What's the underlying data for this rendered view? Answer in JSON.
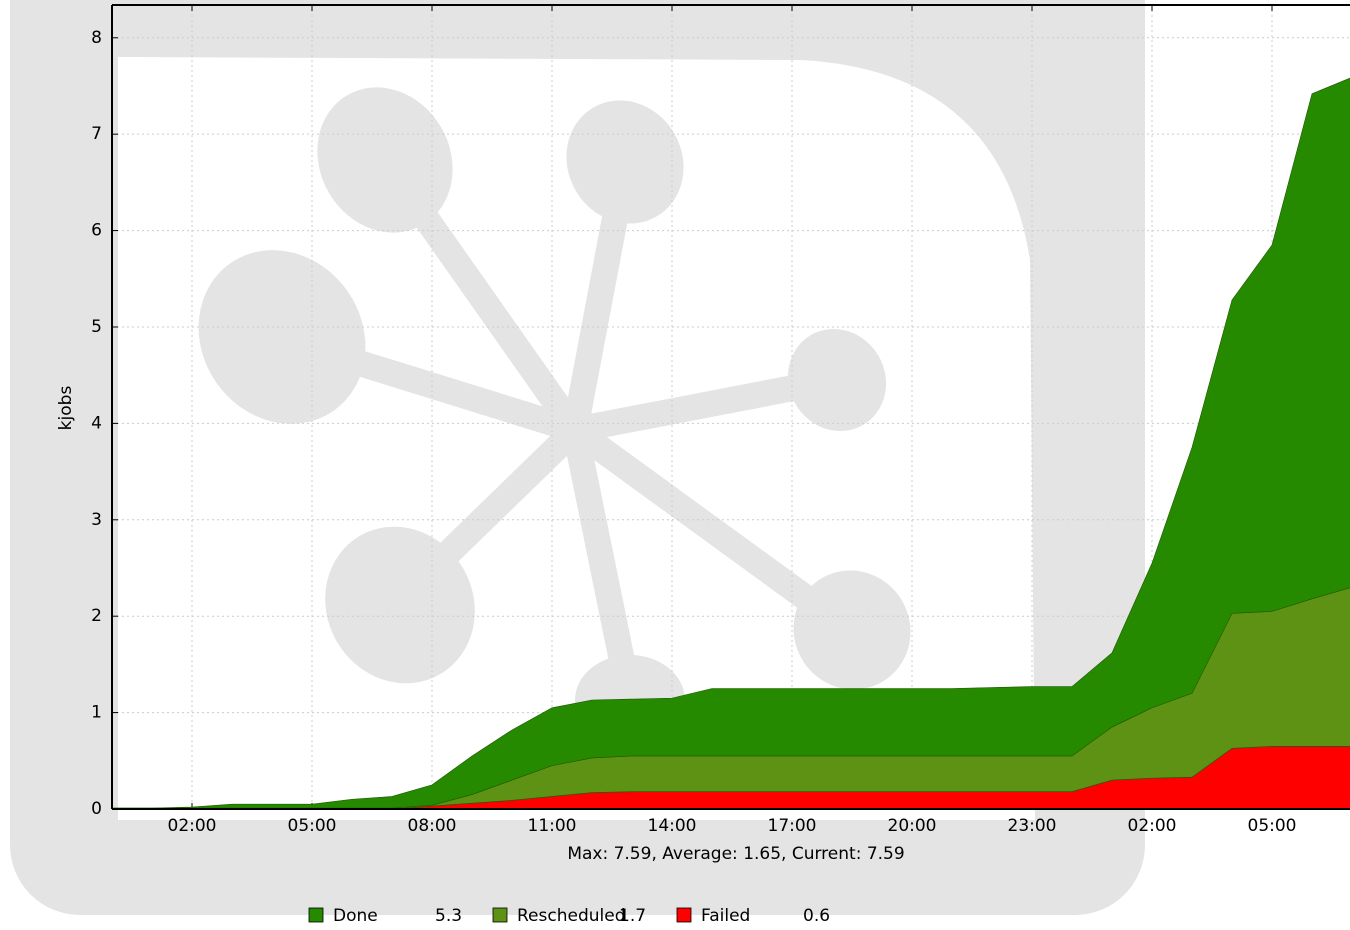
{
  "chart_data": {
    "type": "stacked_area",
    "y_label": "kjobs",
    "summary": "Max: 7.59, Average: 1.65, Current: 7.59",
    "x": [
      0,
      1,
      2,
      3,
      4,
      5,
      6,
      7,
      8,
      9,
      10,
      11,
      12,
      13,
      14,
      15,
      16,
      17,
      18,
      19,
      20,
      21,
      22,
      23,
      24,
      25,
      26,
      27,
      28,
      29,
      30,
      31
    ],
    "series": [
      {
        "name": "Failed",
        "color": "#ff0000",
        "current": 0.6,
        "values": [
          0,
          0,
          0,
          0,
          0,
          0,
          0,
          0,
          0.03,
          0.06,
          0.09,
          0.13,
          0.17,
          0.18,
          0.18,
          0.18,
          0.18,
          0.18,
          0.18,
          0.18,
          0.18,
          0.18,
          0.18,
          0.18,
          0.18,
          0.3,
          0.32,
          0.33,
          0.63,
          0.65,
          0.65,
          0.65
        ]
      },
      {
        "name": "Rescheduled",
        "color": "#5e9215",
        "current": 1.7,
        "values": [
          0.01,
          0.01,
          0.01,
          0.01,
          0.01,
          0.01,
          0.01,
          0.01,
          0.01,
          0.09,
          0.21,
          0.32,
          0.36,
          0.37,
          0.37,
          0.37,
          0.37,
          0.37,
          0.37,
          0.37,
          0.37,
          0.37,
          0.37,
          0.37,
          0.37,
          0.55,
          0.73,
          0.87,
          1.4,
          1.4,
          1.53,
          1.65
        ]
      },
      {
        "name": "Done",
        "color": "#258a00",
        "current": 5.3,
        "values": [
          0,
          0,
          0.01,
          0.04,
          0.04,
          0.04,
          0.09,
          0.12,
          0.21,
          0.4,
          0.52,
          0.6,
          0.6,
          0.59,
          0.6,
          0.7,
          0.7,
          0.7,
          0.7,
          0.7,
          0.7,
          0.7,
          0.71,
          0.72,
          0.72,
          0.77,
          1.5,
          2.55,
          3.25,
          3.8,
          5.24,
          5.29
        ]
      }
    ],
    "xlim": [
      0,
      31
    ],
    "ylim": [
      0,
      8.34
    ],
    "xticks": [
      {
        "value": 2,
        "label": "02:00"
      },
      {
        "value": 5,
        "label": "05:00"
      },
      {
        "value": 8,
        "label": "08:00"
      },
      {
        "value": 11,
        "label": "11:00"
      },
      {
        "value": 14,
        "label": "14:00"
      },
      {
        "value": 17,
        "label": "17:00"
      },
      {
        "value": 20,
        "label": "20:00"
      },
      {
        "value": 23,
        "label": "23:00"
      },
      {
        "value": 26,
        "label": "02:00"
      },
      {
        "value": 29,
        "label": "05:00"
      }
    ],
    "yticks": [
      0,
      1,
      2,
      3,
      4,
      5,
      6,
      7,
      8
    ],
    "grid": true
  }
}
